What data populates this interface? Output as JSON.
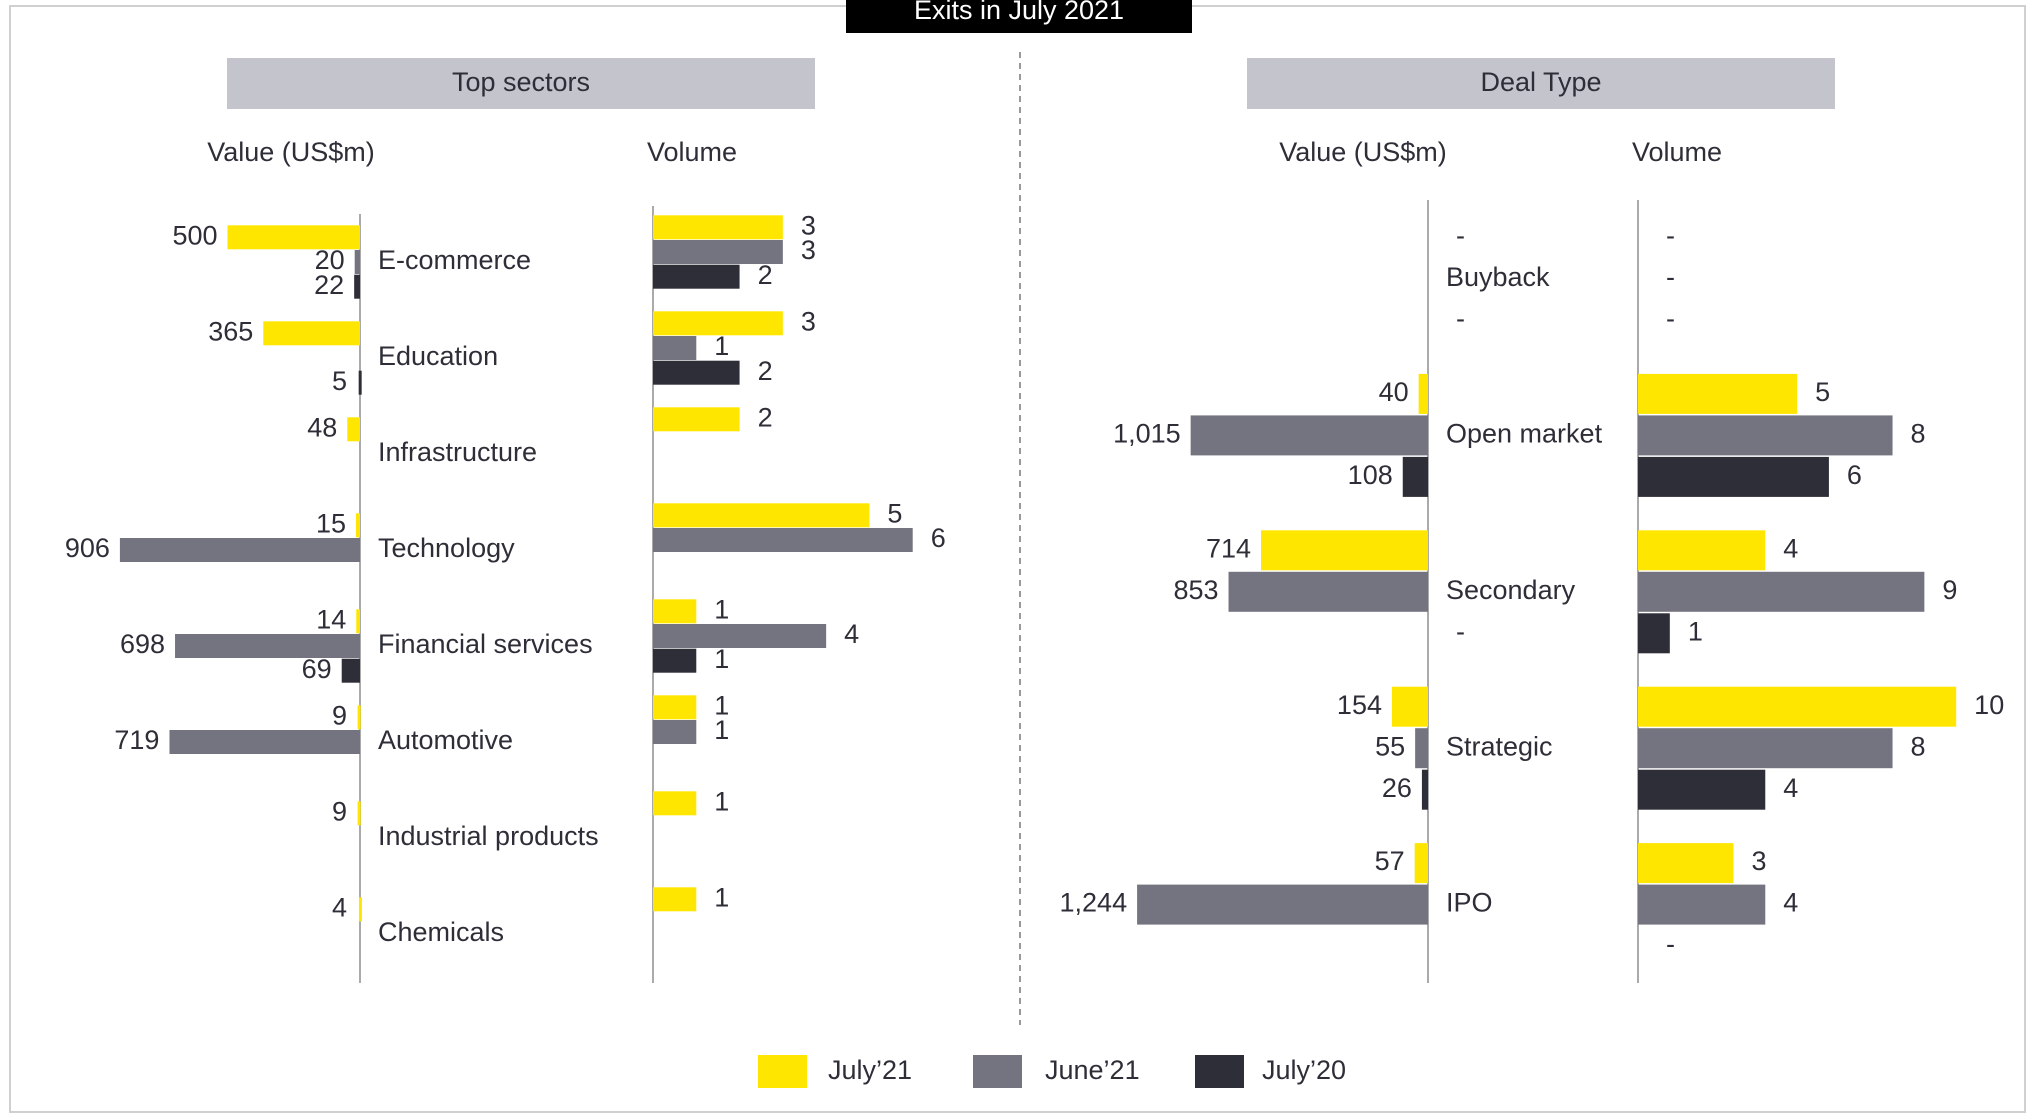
{
  "header": {
    "title": "Exits in July 2021"
  },
  "panels": [
    {
      "title": "Top sectors"
    },
    {
      "title": "Deal Type"
    }
  ],
  "chart_data": [
    {
      "type": "bar",
      "orientation": "horizontal",
      "reversed": true,
      "title": "Value (US$m)",
      "categories": [
        "E-commerce",
        "Education",
        "Infrastructure",
        "Technology",
        "Financial services",
        "Automotive",
        "Industrial products",
        "Chemicals"
      ],
      "xlim": [
        0,
        1000
      ],
      "series": [
        {
          "name": "July’21",
          "color": "#ffe600",
          "values": [
            500,
            365,
            48,
            15,
            14,
            9,
            9,
            4
          ]
        },
        {
          "name": "June’21",
          "color": "#747480",
          "values": [
            20,
            null,
            null,
            906,
            698,
            719,
            null,
            null
          ]
        },
        {
          "name": "July’20",
          "color": "#2e2e38",
          "values": [
            22,
            5,
            null,
            null,
            69,
            null,
            null,
            null
          ]
        }
      ]
    },
    {
      "type": "bar",
      "orientation": "horizontal",
      "reversed": false,
      "title": "Volume",
      "xlim": [
        0,
        7
      ],
      "series": [
        {
          "values": [
            3,
            3,
            2,
            5,
            1,
            1,
            1,
            1
          ]
        },
        {
          "values": [
            3,
            1,
            null,
            6,
            4,
            1,
            null,
            null
          ]
        },
        {
          "values": [
            2,
            2,
            null,
            null,
            1,
            null,
            null,
            null
          ]
        }
      ]
    },
    {
      "type": "bar",
      "orientation": "horizontal",
      "reversed": true,
      "title": "Value (US$m)",
      "categories": [
        "Buyback",
        "Open market",
        "Secondary",
        "Strategic",
        "IPO"
      ],
      "xlim": [
        0,
        1300
      ],
      "series": [
        {
          "values": [
            null,
            40,
            714,
            154,
            57
          ],
          "value_labels": [
            "-",
            null,
            null,
            null,
            null
          ]
        },
        {
          "values": [
            null,
            1015,
            853,
            55,
            1244
          ],
          "value_labels": [
            null,
            "1,015",
            null,
            null,
            "1,244"
          ]
        },
        {
          "values": [
            null,
            108,
            null,
            26,
            null
          ],
          "value_labels": [
            "-",
            null,
            "-",
            null,
            null
          ]
        }
      ]
    },
    {
      "type": "bar",
      "orientation": "horizontal",
      "reversed": false,
      "title": "Volume",
      "xlim": [
        0,
        11
      ],
      "series": [
        {
          "values": [
            null,
            5,
            4,
            10,
            3
          ],
          "value_labels": [
            "-",
            null,
            null,
            null,
            null
          ]
        },
        {
          "values": [
            null,
            8,
            9,
            8,
            4
          ],
          "value_labels": [
            "-",
            null,
            null,
            null,
            null
          ]
        },
        {
          "values": [
            null,
            6,
            1,
            4,
            null
          ],
          "value_labels": [
            "-",
            null,
            null,
            null,
            "-"
          ]
        }
      ]
    }
  ]
}
